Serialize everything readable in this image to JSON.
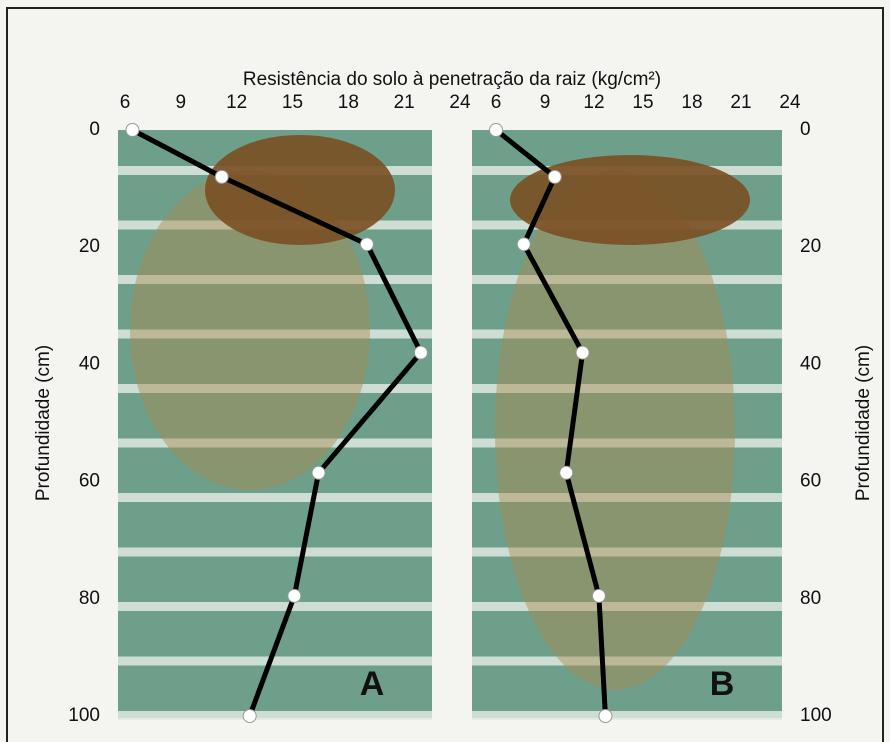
{
  "chart_data": [
    {
      "type": "line",
      "title": "Resistência do solo à penetração da raiz (kg/cm²)",
      "ylabel": "Profundidade (cm)",
      "annotation": "A",
      "x": [
        6.4,
        11.2,
        19.0,
        21.9,
        16.4,
        15.1,
        12.7
      ],
      "values": [
        0,
        8,
        19.5,
        38,
        58.5,
        79.5,
        100
      ],
      "xlim": [
        6,
        24
      ],
      "xticks": [
        6,
        9,
        12,
        15,
        18,
        21,
        24
      ],
      "ylim": [
        0,
        100
      ],
      "yticks": [
        0,
        20,
        40,
        60,
        80,
        100
      ],
      "y_inverted": true,
      "color": "#000000"
    },
    {
      "type": "line",
      "ylabel": "Profundidade (cm)",
      "annotation": "B",
      "x": [
        6,
        9.6,
        7.7,
        11.3,
        10.3,
        12.3,
        12.7
      ],
      "values": [
        0,
        8,
        19.5,
        38,
        58.5,
        79.5,
        100
      ],
      "xlim": [
        6,
        24
      ],
      "xticks": [
        6,
        9,
        12,
        15,
        18,
        21,
        24
      ],
      "ylim": [
        0,
        100
      ],
      "yticks": [
        0,
        20,
        40,
        60,
        80,
        100
      ],
      "y_inverted": true,
      "color": "#000000"
    }
  ]
}
